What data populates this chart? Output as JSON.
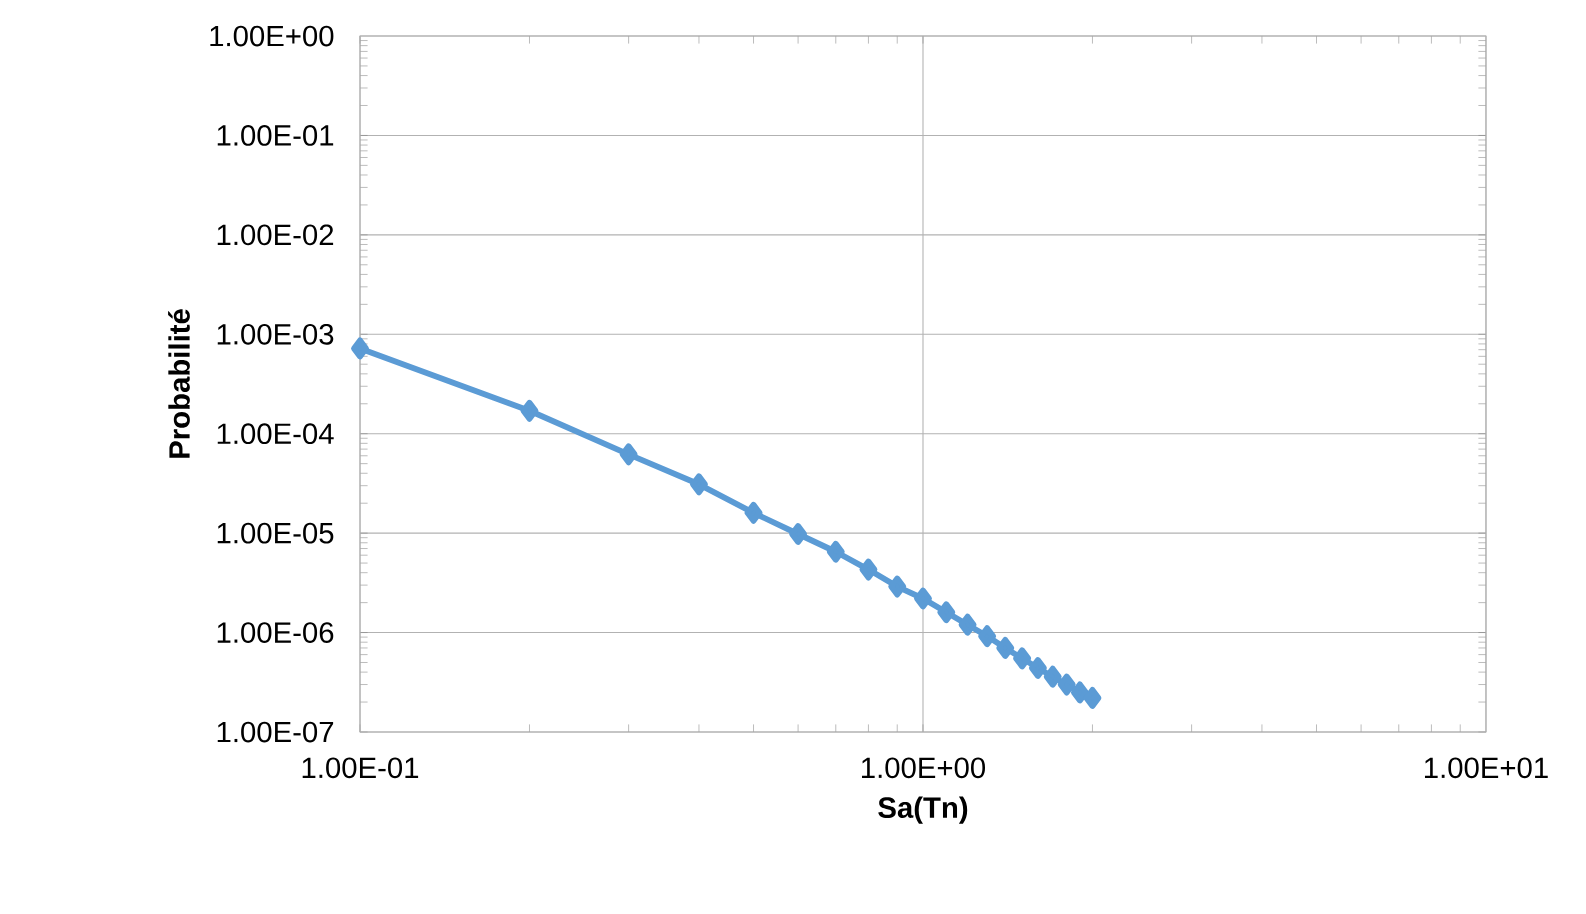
{
  "chart_data": {
    "type": "line",
    "xlabel": "Sa(Tn)",
    "ylabel": "Probabilité",
    "log": "xy",
    "grid": true,
    "marker": "diamond",
    "line_style": "solid",
    "xlim": [
      0.1,
      10
    ],
    "ylim": [
      1e-07,
      1
    ],
    "xticks": [
      {
        "value": 0.1,
        "label": "1.00E-01"
      },
      {
        "value": 1,
        "label": "1.00E+00"
      },
      {
        "value": 10,
        "label": "1.00E+01"
      }
    ],
    "yticks": [
      {
        "value": 1e-07,
        "label": "1.00E-07"
      },
      {
        "value": 1e-06,
        "label": "1.00E-06"
      },
      {
        "value": 1e-05,
        "label": "1.00E-05"
      },
      {
        "value": 0.0001,
        "label": "1.00E-04"
      },
      {
        "value": 0.001,
        "label": "1.00E-03"
      },
      {
        "value": 0.01,
        "label": "1.00E-02"
      },
      {
        "value": 0.1,
        "label": "1.00E-01"
      },
      {
        "value": 1,
        "label": "1.00E+00"
      }
    ],
    "series": [
      {
        "color": "#5b9bd5",
        "x": [
          0.1,
          0.2,
          0.3,
          0.4,
          0.5,
          0.6,
          0.7,
          0.8,
          0.9,
          1.0,
          1.1,
          1.2,
          1.3,
          1.4,
          1.5,
          1.6,
          1.7,
          1.8,
          1.9,
          2.0
        ],
        "values": [
          0.00072,
          0.00017,
          6.2e-05,
          3.1e-05,
          1.6e-05,
          9.8e-06,
          6.5e-06,
          4.3e-06,
          2.9e-06,
          2.2e-06,
          1.6e-06,
          1.2e-06,
          9.2e-07,
          7e-07,
          5.5e-07,
          4.4e-07,
          3.6e-07,
          3e-07,
          2.5e-07,
          2.2e-07
        ]
      }
    ]
  }
}
